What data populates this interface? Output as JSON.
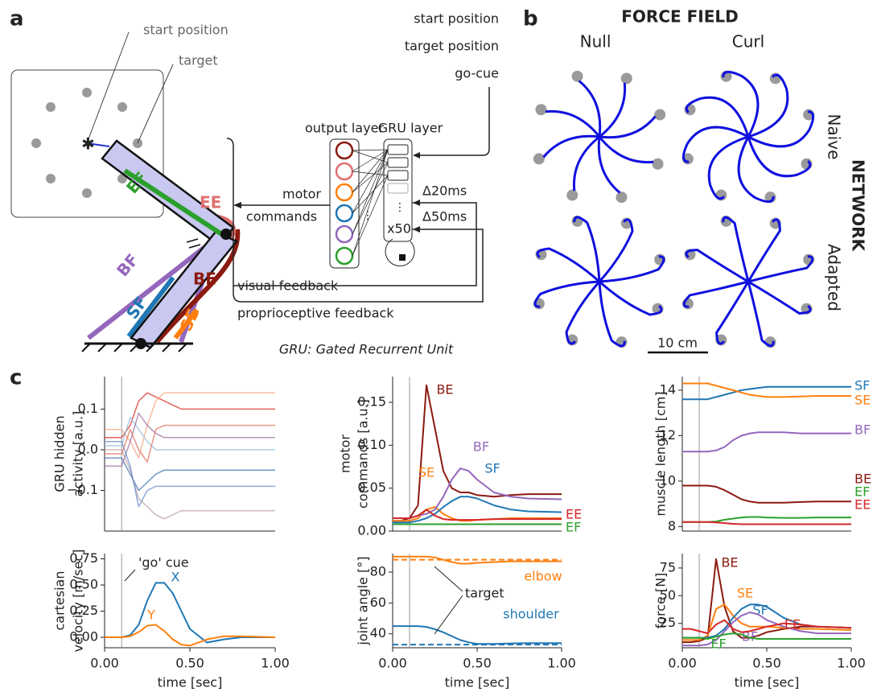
{
  "panel_a": {
    "letter": "a",
    "start_label": "start position",
    "target_label": "target",
    "muscles": [
      "EF",
      "EE",
      "BF",
      "SF",
      "BE",
      "SE"
    ],
    "output_layer": "output layer",
    "gru_layer": "GRU layer",
    "motor": "motor",
    "commands": "commands",
    "delay_visual": "Δ20ms",
    "delay_proprio": "Δ50ms",
    "repeat": "x50",
    "visual": "visual feedback",
    "proprio": "proprioceptive feedback",
    "inputs": [
      "start position",
      "target position",
      "go-cue"
    ],
    "caption": "GRU: Gated Recurrent Unit"
  },
  "panel_b": {
    "letter": "b",
    "title": "FORCE FIELD",
    "columns": [
      "Null",
      "Curl"
    ],
    "rows": [
      "Naive",
      "Adapted"
    ],
    "row_title": "NETWORK",
    "scale": "10 cm"
  },
  "panel_c": {
    "letter": "c"
  },
  "chart_data": [
    {
      "type": "line",
      "ylabel": [
        "GRU hidden",
        "activity [a.u.]"
      ],
      "x": [
        0,
        0.05,
        0.1,
        0.15,
        0.2,
        0.25,
        0.3,
        0.35,
        0.4,
        0.45,
        0.5,
        0.6,
        0.7,
        0.8,
        1.0
      ],
      "xlim": [
        0,
        1
      ],
      "ylim": [
        -0.2,
        0.18
      ],
      "vline": 0.1,
      "yticks": [
        0.1,
        {
          "value": 0,
          "label": "0.0"
        },
        {
          "value": -0.1,
          "label": "−0.1"
        }
      ],
      "series": [
        {
          "color": "#d73027",
          "values": [
            0.03,
            0.03,
            0.03,
            0.06,
            0.12,
            0.14,
            0.13,
            0.12,
            0.11,
            0.1,
            0.1,
            0.1,
            0.1,
            0.1,
            0.1
          ]
        },
        {
          "color": "#f4a582",
          "values": [
            0.05,
            0.05,
            0.05,
            0.02,
            -0.02,
            0.06,
            0.12,
            0.14,
            0.14,
            0.14,
            0.14,
            0.14,
            0.14,
            0.14,
            0.14
          ]
        },
        {
          "color": "#c0a0a0",
          "values": [
            0.0,
            0.0,
            0.0,
            -0.05,
            -0.12,
            -0.14,
            -0.16,
            -0.17,
            -0.16,
            -0.15,
            -0.15,
            -0.15,
            -0.15,
            -0.15,
            -0.15
          ]
        },
        {
          "color": "#4575b4",
          "values": [
            -0.02,
            -0.02,
            -0.02,
            -0.06,
            -0.1,
            -0.08,
            -0.06,
            -0.05,
            -0.05,
            -0.05,
            -0.05,
            -0.05,
            -0.05,
            -0.05,
            -0.05
          ]
        },
        {
          "color": "#91bfdb",
          "values": [
            0.01,
            0.01,
            0.01,
            0.08,
            0.05,
            0.02,
            0.0,
            0.0,
            0.0,
            0.0,
            0.0,
            0.0,
            0.0,
            0.0,
            0.0
          ]
        },
        {
          "color": "#a070a0",
          "values": [
            -0.04,
            -0.04,
            -0.04,
            0.02,
            0.09,
            0.06,
            0.04,
            0.03,
            0.03,
            0.03,
            0.03,
            0.03,
            0.03,
            0.03,
            0.03
          ]
        },
        {
          "color": "#6a8ccf",
          "values": [
            0.02,
            0.02,
            0.02,
            -0.04,
            -0.14,
            -0.1,
            -0.09,
            -0.09,
            -0.09,
            -0.09,
            -0.09,
            -0.09,
            -0.09,
            -0.09,
            -0.09
          ]
        },
        {
          "color": "#e07060",
          "values": [
            -0.01,
            -0.01,
            -0.01,
            0.05,
            0.0,
            -0.03,
            0.05,
            0.06,
            0.06,
            0.06,
            0.06,
            0.06,
            0.06,
            0.06,
            0.06
          ]
        }
      ]
    },
    {
      "type": "line",
      "ylabel": [
        "motor",
        "commands [a.u.]"
      ],
      "x": [
        0,
        0.05,
        0.1,
        0.15,
        0.2,
        0.25,
        0.3,
        0.35,
        0.4,
        0.45,
        0.5,
        0.6,
        0.7,
        0.8,
        1.0
      ],
      "xlim": [
        0,
        1
      ],
      "ylim": [
        0,
        0.18
      ],
      "vline": 0.1,
      "yticks": [
        {
          "value": 0,
          "label": "0.00"
        },
        {
          "value": 0.05,
          "label": "0.05"
        },
        {
          "value": 0.1,
          "label": "0.10"
        },
        {
          "value": 0.15,
          "label": "0.15"
        }
      ],
      "series": [
        {
          "name": "BE",
          "color": "#8b1a0f",
          "values": [
            0.012,
            0.012,
            0.015,
            0.03,
            0.17,
            0.12,
            0.07,
            0.05,
            0.045,
            0.045,
            0.042,
            0.04,
            0.042,
            0.043,
            0.043
          ]
        },
        {
          "name": "SE",
          "color": "#ff7f0e",
          "values": [
            0.012,
            0.012,
            0.012,
            0.015,
            0.025,
            0.028,
            0.02,
            0.015,
            0.012,
            0.012,
            0.013,
            0.014,
            0.015,
            0.015,
            0.015
          ]
        },
        {
          "name": "BF",
          "color": "#9467bd",
          "values": [
            0.015,
            0.015,
            0.015,
            0.018,
            0.02,
            0.025,
            0.04,
            0.06,
            0.073,
            0.07,
            0.06,
            0.045,
            0.04,
            0.038,
            0.037
          ]
        },
        {
          "name": "SF",
          "color": "#1f77b4",
          "values": [
            0.01,
            0.01,
            0.01,
            0.012,
            0.015,
            0.02,
            0.028,
            0.035,
            0.04,
            0.04,
            0.038,
            0.03,
            0.025,
            0.023,
            0.022
          ]
        },
        {
          "name": "EE",
          "color": "#d62728",
          "values": [
            0.015,
            0.015,
            0.015,
            0.018,
            0.025,
            0.018,
            0.014,
            0.013,
            0.013,
            0.013,
            0.013,
            0.014,
            0.014,
            0.014,
            0.014
          ]
        },
        {
          "name": "EF",
          "color": "#2ca02c",
          "values": [
            0.008,
            0.008,
            0.008,
            0.008,
            0.008,
            0.008,
            0.008,
            0.008,
            0.008,
            0.008,
            0.008,
            0.008,
            0.008,
            0.008,
            0.008
          ]
        }
      ]
    },
    {
      "type": "line",
      "ylabel": [
        "muscle length [cm]"
      ],
      "x": [
        0,
        0.05,
        0.1,
        0.15,
        0.2,
        0.25,
        0.3,
        0.35,
        0.4,
        0.45,
        0.5,
        0.6,
        0.7,
        0.8,
        1.0
      ],
      "xlim": [
        0,
        1
      ],
      "ylim": [
        7.8,
        14.6
      ],
      "vline": 0.1,
      "yticks": [
        8,
        10,
        12,
        14
      ],
      "series": [
        {
          "name": "SF",
          "color": "#1f77b4",
          "values": [
            13.6,
            13.6,
            13.6,
            13.6,
            13.7,
            13.8,
            13.9,
            14.0,
            14.05,
            14.1,
            14.15,
            14.15,
            14.15,
            14.15,
            14.15
          ]
        },
        {
          "name": "SE",
          "color": "#ff7f0e",
          "values": [
            14.3,
            14.3,
            14.3,
            14.3,
            14.2,
            14.1,
            14.0,
            13.9,
            13.8,
            13.75,
            13.7,
            13.7,
            13.72,
            13.75,
            13.75
          ]
        },
        {
          "name": "BF",
          "color": "#9467bd",
          "values": [
            11.3,
            11.3,
            11.3,
            11.3,
            11.35,
            11.5,
            11.8,
            12.0,
            12.1,
            12.15,
            12.15,
            12.15,
            12.1,
            12.1,
            12.1
          ]
        },
        {
          "name": "BE",
          "color": "#8b1a0f",
          "values": [
            9.8,
            9.8,
            9.8,
            9.8,
            9.75,
            9.6,
            9.4,
            9.2,
            9.1,
            9.05,
            9.05,
            9.05,
            9.08,
            9.1,
            9.1
          ]
        },
        {
          "name": "EF",
          "color": "#2ca02c",
          "values": [
            8.2,
            8.2,
            8.2,
            8.2,
            8.22,
            8.3,
            8.35,
            8.4,
            8.42,
            8.42,
            8.4,
            8.38,
            8.38,
            8.4,
            8.4
          ]
        },
        {
          "name": "EE",
          "color": "#d62728",
          "values": [
            8.2,
            8.2,
            8.2,
            8.2,
            8.18,
            8.15,
            8.12,
            8.1,
            8.1,
            8.1,
            8.1,
            8.1,
            8.1,
            8.1,
            8.1
          ]
        }
      ]
    },
    {
      "type": "line",
      "ylabel": [
        "cartesian",
        "velocity [m/sec]"
      ],
      "xlabel": "time [sec]",
      "annotation": "'go' cue",
      "x": [
        0,
        0.05,
        0.1,
        0.15,
        0.2,
        0.25,
        0.3,
        0.35,
        0.4,
        0.45,
        0.5,
        0.6,
        0.7,
        0.8,
        1.0
      ],
      "xlim": [
        0,
        1
      ],
      "ylim": [
        -0.1,
        0.8
      ],
      "vline": 0.1,
      "xticks": [
        {
          "value": 0,
          "label": "0.00"
        },
        {
          "value": 0.5,
          "label": "0.50"
        },
        {
          "value": 1,
          "label": "1.00"
        }
      ],
      "yticks": [
        {
          "value": 0,
          "label": "0.00"
        },
        {
          "value": 0.25,
          "label": "0.25"
        },
        {
          "value": 0.5,
          "label": "0.50"
        },
        {
          "value": 0.75,
          "label": "0.75"
        }
      ],
      "series": [
        {
          "name": "X",
          "color": "#1f77b4",
          "values": [
            0,
            0,
            0,
            0.02,
            0.12,
            0.35,
            0.52,
            0.52,
            0.42,
            0.25,
            0.08,
            -0.05,
            -0.02,
            0,
            0
          ]
        },
        {
          "name": "Y",
          "color": "#ff7f0e",
          "values": [
            0,
            0,
            0,
            0.01,
            0.05,
            0.11,
            0.12,
            0.06,
            -0.02,
            -0.07,
            -0.08,
            -0.02,
            0.01,
            0.01,
            0
          ]
        }
      ]
    },
    {
      "type": "line",
      "ylabel": [
        "joint angle [°]"
      ],
      "xlabel": "time [sec]",
      "annotation": "target",
      "x": [
        0,
        0.05,
        0.1,
        0.15,
        0.2,
        0.25,
        0.3,
        0.35,
        0.4,
        0.45,
        0.5,
        0.6,
        0.7,
        0.8,
        1.0
      ],
      "xlim": [
        0,
        1
      ],
      "ylim": [
        31,
        92
      ],
      "vline": 0.1,
      "xticks": [
        {
          "value": 0,
          "label": "0.00"
        },
        {
          "value": 0.5,
          "label": "0.50"
        },
        {
          "value": 1,
          "label": "1.00"
        }
      ],
      "yticks": [
        40,
        60,
        80
      ],
      "hlines": [
        {
          "value": 88,
          "color": "#ff7f0e"
        },
        {
          "value": 33,
          "color": "#1f77b4"
        }
      ],
      "series": [
        {
          "name": "elbow",
          "color": "#ff7f0e",
          "values": [
            90,
            90,
            90,
            90,
            90,
            89.5,
            88,
            86.5,
            85.5,
            85.5,
            86,
            86.5,
            87,
            87,
            87
          ]
        },
        {
          "name": "shoulder",
          "color": "#1f77b4",
          "values": [
            45,
            45,
            45,
            45,
            44.5,
            43,
            41,
            38.5,
            36,
            34.5,
            33.5,
            33.5,
            33.8,
            34,
            34
          ]
        }
      ]
    },
    {
      "type": "line",
      "ylabel": [
        "force [N]"
      ],
      "xlabel": "time [sec]",
      "x": [
        0,
        0.05,
        0.1,
        0.15,
        0.2,
        0.25,
        0.3,
        0.35,
        0.4,
        0.45,
        0.5,
        0.6,
        0.7,
        0.8,
        1.0
      ],
      "xlim": [
        0,
        1
      ],
      "ylim": [
        3,
        88
      ],
      "vline": 0.1,
      "xticks": [
        {
          "value": 0,
          "label": "0.00"
        },
        {
          "value": 0.5,
          "label": "0.50"
        },
        {
          "value": 1,
          "label": "1.00"
        }
      ],
      "yticks": [
        25,
        50,
        75
      ],
      "series": [
        {
          "name": "BE",
          "color": "#8b1a0f",
          "values": [
            8,
            8,
            9,
            12,
            83,
            40,
            18,
            12,
            12,
            14,
            17,
            20,
            22,
            22,
            21
          ]
        },
        {
          "name": "SE",
          "color": "#ff7f0e",
          "values": [
            10,
            10,
            10,
            14,
            38,
            42,
            32,
            25,
            22,
            22,
            22,
            21,
            20,
            20,
            19
          ]
        },
        {
          "name": "SF",
          "color": "#1f77b4",
          "values": [
            12,
            12,
            12,
            12,
            14,
            20,
            30,
            38,
            42,
            42,
            40,
            30,
            24,
            22,
            21
          ]
        },
        {
          "name": "BF",
          "color": "#9467bd",
          "values": [
            5,
            5,
            5,
            6,
            10,
            18,
            26,
            32,
            35,
            33,
            28,
            22,
            18,
            16,
            16
          ]
        },
        {
          "name": "EE",
          "color": "#d62728",
          "values": [
            20,
            20,
            18,
            16,
            24,
            28,
            20,
            17,
            18,
            20,
            22,
            25,
            24,
            22,
            21
          ]
        },
        {
          "name": "EF",
          "color": "#2ca02c",
          "values": [
            12,
            12,
            12,
            11,
            13,
            15,
            16,
            15,
            12,
            11,
            11,
            11,
            11,
            11,
            11
          ]
        }
      ]
    }
  ]
}
